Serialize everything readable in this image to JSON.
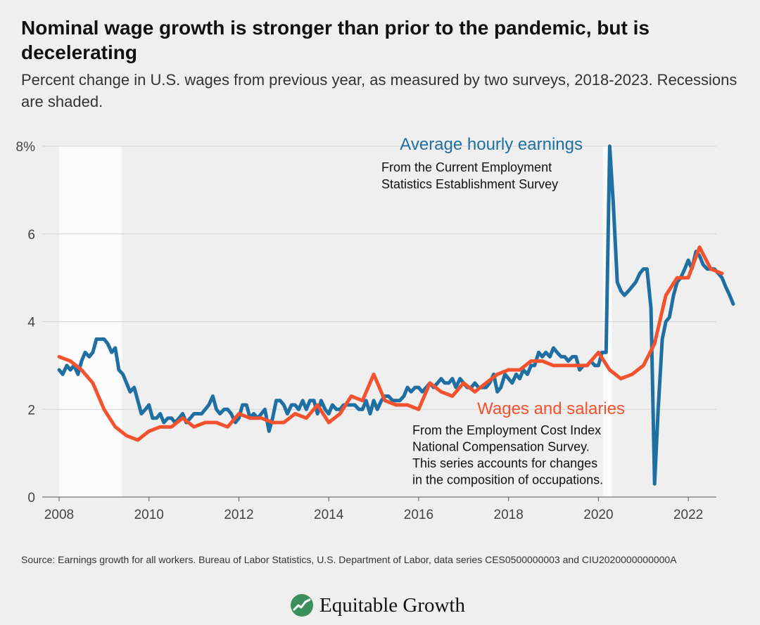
{
  "title": "Nominal wage growth is stronger than prior to the pandemic, but is decelerating",
  "subtitle": "Percent change in U.S. wages from previous year, as measured by two surveys, 2018-2023. Recessions are shaded.",
  "source": "Source: Earnings growth for all workers. Bureau of Labor Statistics, U.S. Department of Labor, data series CES0500000003 and CIU2020000000000A",
  "brand": {
    "name": "Equitable Growth",
    "logo_icon": "growth-line-icon",
    "logo_color": "#3a8f5a"
  },
  "colors": {
    "ahe": "#1f6fa3",
    "wages": "#f2522e",
    "annotation_ahe": "#1f6fa3",
    "annotation_wages": "#f2522e",
    "recession": "#fbfbfb",
    "grid": "#d4d4d4"
  },
  "annotations": {
    "ahe": {
      "title": "Average hourly earnings",
      "lines": [
        "From the Current Employment",
        "Statistics Establishment Survey"
      ]
    },
    "wages": {
      "title": "Wages and salaries",
      "lines": [
        "From the Employment Cost Index",
        "National Compensation Survey.",
        "This series accounts for changes",
        "in the composition of occupations."
      ]
    }
  },
  "chart_data": {
    "type": "line",
    "title": "",
    "xlabel": "",
    "ylabel": "",
    "xlim": [
      2008,
      2023
    ],
    "ylim": [
      0,
      8
    ],
    "x_ticks": [
      2008,
      2010,
      2012,
      2014,
      2016,
      2018,
      2020,
      2022
    ],
    "y_ticks": [
      {
        "value": 0,
        "label": "0"
      },
      {
        "value": 2,
        "label": "2"
      },
      {
        "value": 4,
        "label": "4"
      },
      {
        "value": 6,
        "label": "6"
      },
      {
        "value": 8,
        "label": "8%"
      }
    ],
    "grid": true,
    "recessions": [
      [
        2008.0,
        2009.4
      ],
      [
        2020.1,
        2020.3
      ]
    ],
    "series": [
      {
        "key": "ahe",
        "name": "Average hourly earnings",
        "points": [
          [
            2008.0,
            2.9
          ],
          [
            2008.08,
            2.8
          ],
          [
            2008.17,
            3.0
          ],
          [
            2008.25,
            2.9
          ],
          [
            2008.33,
            3.0
          ],
          [
            2008.42,
            2.8
          ],
          [
            2008.5,
            3.1
          ],
          [
            2008.58,
            3.3
          ],
          [
            2008.67,
            3.2
          ],
          [
            2008.75,
            3.3
          ],
          [
            2008.83,
            3.6
          ],
          [
            2008.92,
            3.6
          ],
          [
            2009.0,
            3.6
          ],
          [
            2009.08,
            3.5
          ],
          [
            2009.17,
            3.3
          ],
          [
            2009.25,
            3.4
          ],
          [
            2009.33,
            2.9
          ],
          [
            2009.42,
            2.8
          ],
          [
            2009.5,
            2.6
          ],
          [
            2009.58,
            2.4
          ],
          [
            2009.67,
            2.5
          ],
          [
            2009.75,
            2.2
          ],
          [
            2009.83,
            1.9
          ],
          [
            2009.92,
            2.0
          ],
          [
            2010.0,
            2.1
          ],
          [
            2010.08,
            1.8
          ],
          [
            2010.17,
            1.8
          ],
          [
            2010.25,
            1.9
          ],
          [
            2010.33,
            1.7
          ],
          [
            2010.42,
            1.8
          ],
          [
            2010.5,
            1.8
          ],
          [
            2010.58,
            1.7
          ],
          [
            2010.67,
            1.8
          ],
          [
            2010.75,
            1.9
          ],
          [
            2010.83,
            1.7
          ],
          [
            2010.92,
            1.8
          ],
          [
            2011.0,
            1.9
          ],
          [
            2011.08,
            1.9
          ],
          [
            2011.17,
            1.9
          ],
          [
            2011.25,
            2.0
          ],
          [
            2011.33,
            2.1
          ],
          [
            2011.42,
            2.3
          ],
          [
            2011.5,
            2.0
          ],
          [
            2011.58,
            1.9
          ],
          [
            2011.67,
            2.0
          ],
          [
            2011.75,
            2.0
          ],
          [
            2011.83,
            1.9
          ],
          [
            2011.92,
            1.7
          ],
          [
            2012.0,
            1.8
          ],
          [
            2012.08,
            2.1
          ],
          [
            2012.17,
            2.1
          ],
          [
            2012.25,
            1.8
          ],
          [
            2012.33,
            1.9
          ],
          [
            2012.42,
            1.8
          ],
          [
            2012.5,
            1.9
          ],
          [
            2012.58,
            2.0
          ],
          [
            2012.67,
            1.5
          ],
          [
            2012.75,
            1.8
          ],
          [
            2012.83,
            2.2
          ],
          [
            2012.92,
            2.2
          ],
          [
            2013.0,
            2.1
          ],
          [
            2013.08,
            1.9
          ],
          [
            2013.17,
            2.1
          ],
          [
            2013.25,
            2.1
          ],
          [
            2013.33,
            2.0
          ],
          [
            2013.42,
            2.2
          ],
          [
            2013.5,
            2.0
          ],
          [
            2013.58,
            2.2
          ],
          [
            2013.67,
            2.2
          ],
          [
            2013.75,
            1.9
          ],
          [
            2013.83,
            2.2
          ],
          [
            2013.92,
            2.0
          ],
          [
            2014.0,
            1.9
          ],
          [
            2014.08,
            2.1
          ],
          [
            2014.17,
            2.0
          ],
          [
            2014.25,
            2.0
          ],
          [
            2014.33,
            2.1
          ],
          [
            2014.42,
            2.1
          ],
          [
            2014.5,
            2.1
          ],
          [
            2014.58,
            2.1
          ],
          [
            2014.67,
            2.0
          ],
          [
            2014.75,
            2.0
          ],
          [
            2014.83,
            2.2
          ],
          [
            2014.92,
            1.9
          ],
          [
            2015.0,
            2.2
          ],
          [
            2015.08,
            2.0
          ],
          [
            2015.17,
            2.2
          ],
          [
            2015.25,
            2.3
          ],
          [
            2015.33,
            2.3
          ],
          [
            2015.42,
            2.2
          ],
          [
            2015.5,
            2.2
          ],
          [
            2015.58,
            2.2
          ],
          [
            2015.67,
            2.3
          ],
          [
            2015.75,
            2.5
          ],
          [
            2015.83,
            2.4
          ],
          [
            2015.92,
            2.5
          ],
          [
            2016.0,
            2.5
          ],
          [
            2016.08,
            2.4
          ],
          [
            2016.17,
            2.5
          ],
          [
            2016.25,
            2.6
          ],
          [
            2016.33,
            2.5
          ],
          [
            2016.42,
            2.6
          ],
          [
            2016.5,
            2.7
          ],
          [
            2016.58,
            2.6
          ],
          [
            2016.67,
            2.6
          ],
          [
            2016.75,
            2.7
          ],
          [
            2016.83,
            2.5
          ],
          [
            2016.92,
            2.7
          ],
          [
            2017.0,
            2.6
          ],
          [
            2017.08,
            2.5
          ],
          [
            2017.17,
            2.5
          ],
          [
            2017.25,
            2.6
          ],
          [
            2017.33,
            2.5
          ],
          [
            2017.42,
            2.5
          ],
          [
            2017.5,
            2.5
          ],
          [
            2017.58,
            2.6
          ],
          [
            2017.67,
            2.8
          ],
          [
            2017.75,
            2.4
          ],
          [
            2017.83,
            2.5
          ],
          [
            2017.92,
            2.8
          ],
          [
            2018.0,
            2.7
          ],
          [
            2018.08,
            2.6
          ],
          [
            2018.17,
            2.8
          ],
          [
            2018.25,
            2.7
          ],
          [
            2018.33,
            2.9
          ],
          [
            2018.42,
            2.8
          ],
          [
            2018.5,
            3.0
          ],
          [
            2018.58,
            3.0
          ],
          [
            2018.67,
            3.3
          ],
          [
            2018.75,
            3.2
          ],
          [
            2018.83,
            3.3
          ],
          [
            2018.92,
            3.2
          ],
          [
            2019.0,
            3.4
          ],
          [
            2019.08,
            3.3
          ],
          [
            2019.17,
            3.2
          ],
          [
            2019.25,
            3.2
          ],
          [
            2019.33,
            3.1
          ],
          [
            2019.42,
            3.2
          ],
          [
            2019.5,
            3.2
          ],
          [
            2019.58,
            2.9
          ],
          [
            2019.67,
            3.0
          ],
          [
            2019.75,
            3.0
          ],
          [
            2019.83,
            3.1
          ],
          [
            2019.92,
            3.0
          ],
          [
            2020.0,
            3.0
          ],
          [
            2020.08,
            3.3
          ],
          [
            2020.17,
            3.3
          ],
          [
            2020.25,
            8.0
          ],
          [
            2020.33,
            6.7
          ],
          [
            2020.42,
            4.9
          ],
          [
            2020.5,
            4.7
          ],
          [
            2020.58,
            4.6
          ],
          [
            2020.67,
            4.7
          ],
          [
            2020.75,
            4.8
          ],
          [
            2020.83,
            4.9
          ],
          [
            2020.92,
            5.1
          ],
          [
            2021.0,
            5.2
          ],
          [
            2021.08,
            5.2
          ],
          [
            2021.17,
            4.3
          ],
          [
            2021.25,
            0.3
          ],
          [
            2021.33,
            2.0
          ],
          [
            2021.42,
            3.6
          ],
          [
            2021.5,
            4.0
          ],
          [
            2021.58,
            4.1
          ],
          [
            2021.67,
            4.6
          ],
          [
            2021.75,
            4.9
          ],
          [
            2021.83,
            5.0
          ],
          [
            2021.92,
            5.2
          ],
          [
            2022.0,
            5.4
          ],
          [
            2022.08,
            5.2
          ],
          [
            2022.17,
            5.6
          ],
          [
            2022.25,
            5.5
          ],
          [
            2022.33,
            5.3
          ],
          [
            2022.42,
            5.2
          ],
          [
            2022.5,
            5.2
          ],
          [
            2022.58,
            5.2
          ],
          [
            2022.67,
            5.1
          ],
          [
            2022.75,
            5.0
          ],
          [
            2022.83,
            4.8
          ],
          [
            2022.92,
            4.6
          ],
          [
            2023.0,
            4.4
          ]
        ]
      },
      {
        "key": "wages",
        "name": "Wages and salaries",
        "points": [
          [
            2008.0,
            3.2
          ],
          [
            2008.25,
            3.1
          ],
          [
            2008.5,
            2.9
          ],
          [
            2008.75,
            2.6
          ],
          [
            2009.0,
            2.0
          ],
          [
            2009.25,
            1.6
          ],
          [
            2009.5,
            1.4
          ],
          [
            2009.75,
            1.3
          ],
          [
            2010.0,
            1.5
          ],
          [
            2010.25,
            1.6
          ],
          [
            2010.5,
            1.6
          ],
          [
            2010.75,
            1.8
          ],
          [
            2011.0,
            1.6
          ],
          [
            2011.25,
            1.7
          ],
          [
            2011.5,
            1.7
          ],
          [
            2011.75,
            1.6
          ],
          [
            2012.0,
            1.9
          ],
          [
            2012.25,
            1.8
          ],
          [
            2012.5,
            1.8
          ],
          [
            2012.75,
            1.7
          ],
          [
            2013.0,
            1.7
          ],
          [
            2013.25,
            1.9
          ],
          [
            2013.5,
            1.8
          ],
          [
            2013.75,
            2.1
          ],
          [
            2014.0,
            1.7
          ],
          [
            2014.25,
            1.9
          ],
          [
            2014.5,
            2.3
          ],
          [
            2014.75,
            2.2
          ],
          [
            2015.0,
            2.8
          ],
          [
            2015.25,
            2.2
          ],
          [
            2015.5,
            2.1
          ],
          [
            2015.75,
            2.1
          ],
          [
            2016.0,
            2.0
          ],
          [
            2016.25,
            2.6
          ],
          [
            2016.5,
            2.4
          ],
          [
            2016.75,
            2.3
          ],
          [
            2017.0,
            2.6
          ],
          [
            2017.25,
            2.4
          ],
          [
            2017.5,
            2.6
          ],
          [
            2017.75,
            2.8
          ],
          [
            2018.0,
            2.9
          ],
          [
            2018.25,
            2.9
          ],
          [
            2018.5,
            3.1
          ],
          [
            2018.75,
            3.1
          ],
          [
            2019.0,
            3.0
          ],
          [
            2019.25,
            3.0
          ],
          [
            2019.5,
            3.0
          ],
          [
            2019.75,
            3.0
          ],
          [
            2020.0,
            3.3
          ],
          [
            2020.25,
            2.9
          ],
          [
            2020.5,
            2.7
          ],
          [
            2020.75,
            2.8
          ],
          [
            2021.0,
            3.0
          ],
          [
            2021.25,
            3.5
          ],
          [
            2021.5,
            4.6
          ],
          [
            2021.75,
            5.0
          ],
          [
            2022.0,
            5.0
          ],
          [
            2022.25,
            5.7
          ],
          [
            2022.5,
            5.2
          ],
          [
            2022.75,
            5.1
          ]
        ]
      }
    ]
  }
}
